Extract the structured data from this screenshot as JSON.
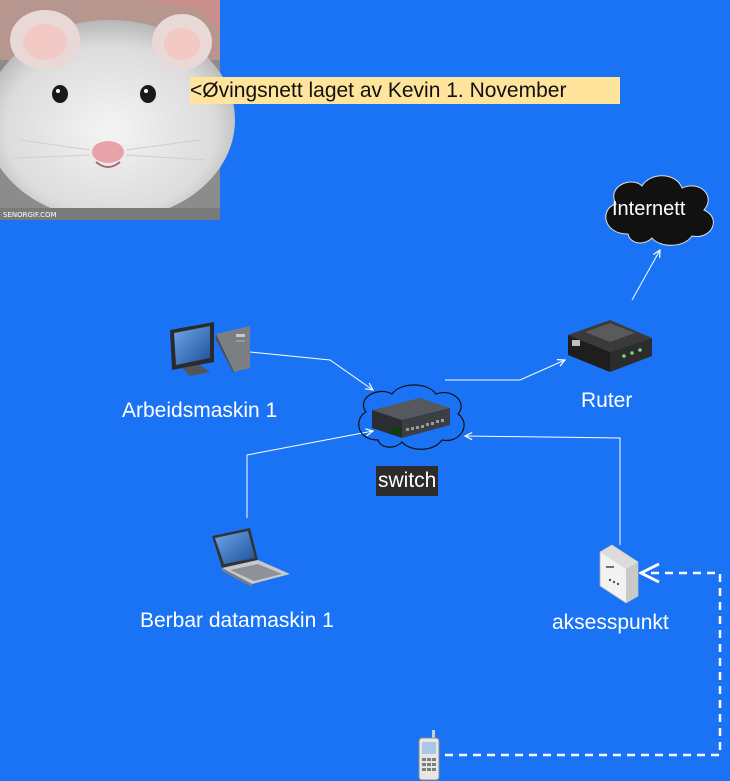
{
  "diagram": {
    "title_note": "<Øvingsnett laget av Kevin 1. November",
    "nodes": {
      "workstation": {
        "label": "Arbeidsmaskin 1",
        "icon": "desktop-computer-icon"
      },
      "laptop": {
        "label": "Berbar datamaskin 1",
        "icon": "laptop-icon"
      },
      "switch": {
        "label": "switch",
        "icon": "network-switch-icon"
      },
      "router": {
        "label": "Ruter",
        "icon": "router-icon"
      },
      "internet": {
        "label": "Internett",
        "icon": "cloud-icon"
      },
      "access_point": {
        "label": "aksesspunkt",
        "icon": "access-point-icon"
      },
      "mobile": {
        "label": "",
        "icon": "mobile-phone-icon"
      }
    },
    "connections": [
      {
        "from": "workstation",
        "to": "switch",
        "style": "solid"
      },
      {
        "from": "laptop",
        "to": "switch",
        "style": "solid"
      },
      {
        "from": "switch",
        "to": "router",
        "style": "solid"
      },
      {
        "from": "router",
        "to": "internet",
        "style": "solid"
      },
      {
        "from": "access_point",
        "to": "switch",
        "style": "solid"
      },
      {
        "from": "mobile",
        "to": "access_point",
        "style": "dashed"
      }
    ],
    "colors": {
      "background": "#1a73f5",
      "note_background": "#ffe49c",
      "switch_label_background": "#2c2c2c",
      "connector": "#ffffff",
      "cloud": "#111111"
    },
    "photo": {
      "icon": "hamster-photo",
      "caption": "SENORGIF.COM"
    }
  }
}
